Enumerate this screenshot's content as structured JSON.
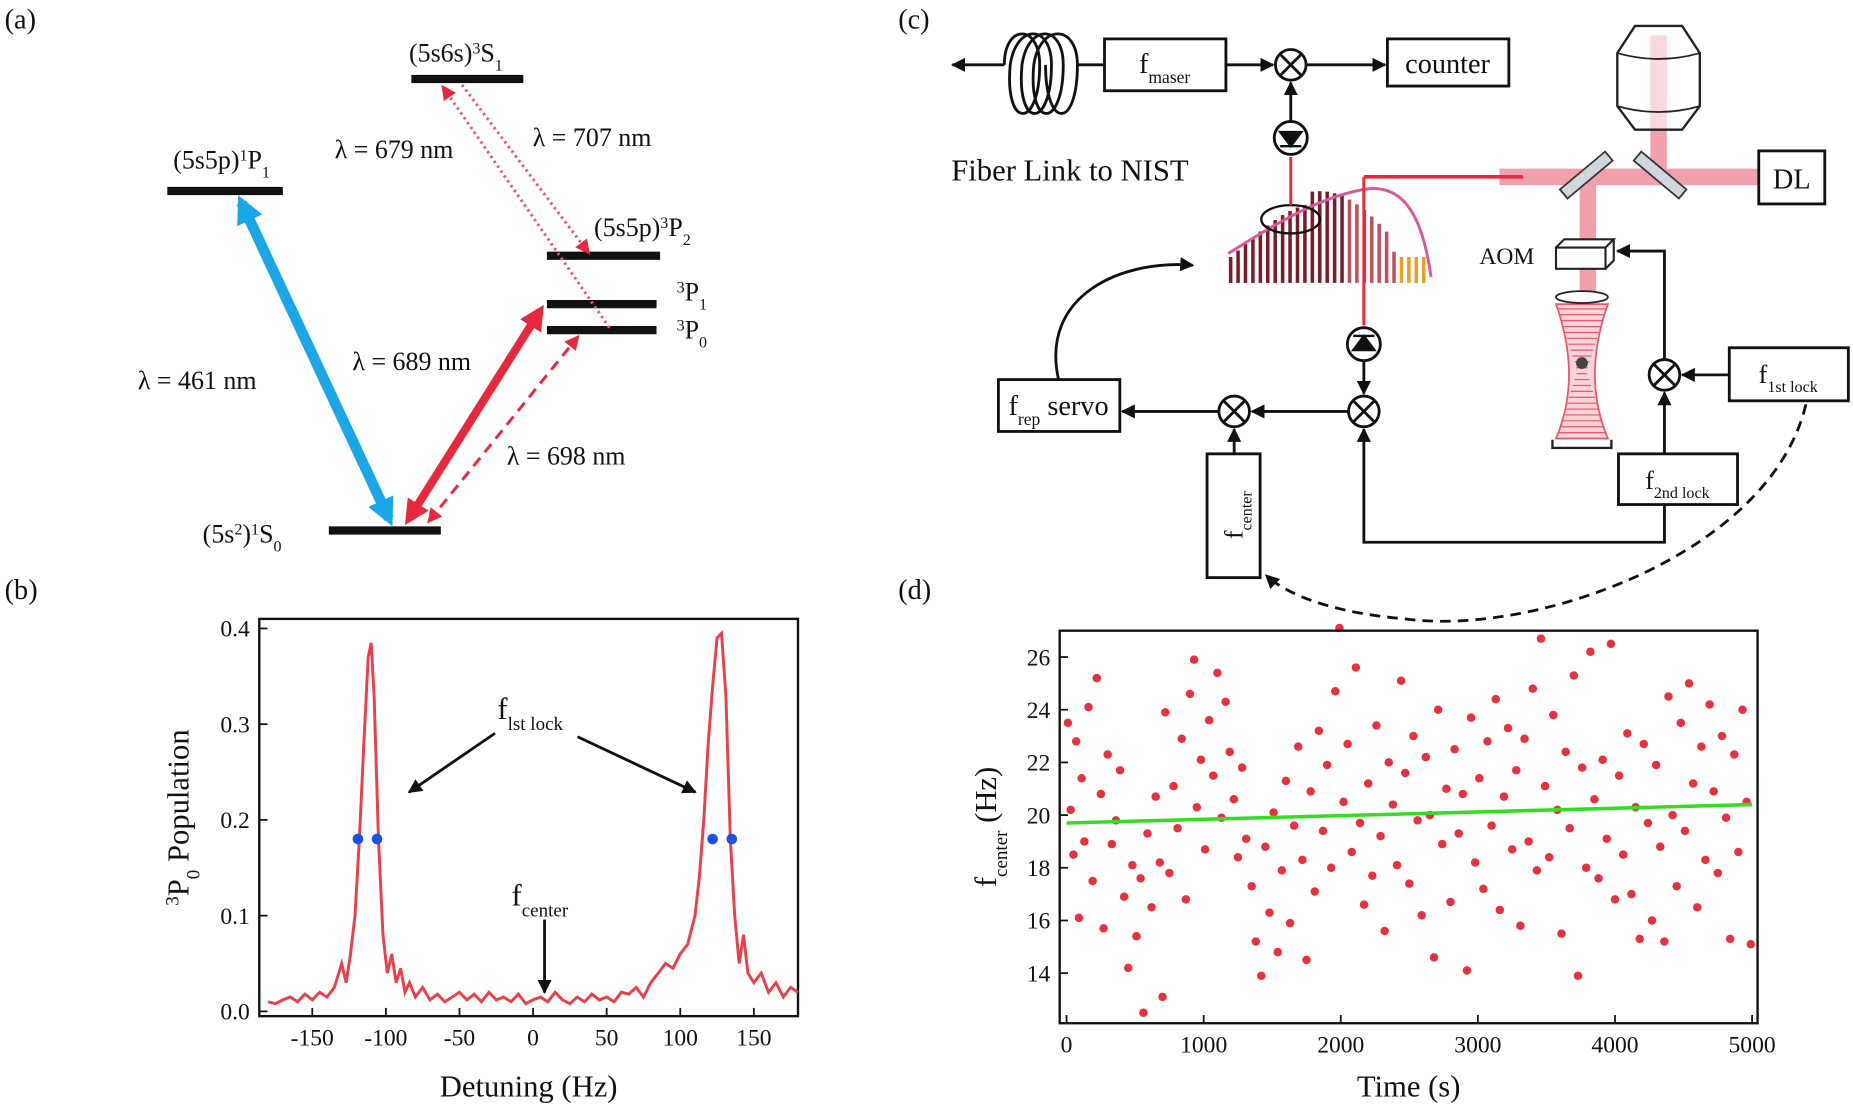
{
  "panel_labels": [
    "(a)",
    "(b)",
    "(c)",
    "(d)"
  ],
  "diagram_a": {
    "levels": [
      {
        "parts": [
          {
            "t": "(5s5p)"
          },
          {
            "sup": "1"
          },
          {
            "t": "P"
          },
          {
            "sub": "1"
          }
        ]
      },
      {
        "parts": [
          {
            "t": "(5s6s)"
          },
          {
            "sup": "3"
          },
          {
            "t": "S"
          },
          {
            "sub": "1"
          }
        ]
      },
      {
        "parts": [
          {
            "t": "(5s5p)"
          },
          {
            "sup": "3"
          },
          {
            "t": "P"
          },
          {
            "sub": "2"
          }
        ]
      },
      {
        "parts": [
          {
            "sup": "3"
          },
          {
            "t": "P"
          },
          {
            "sub": "1"
          }
        ]
      },
      {
        "parts": [
          {
            "sup": "3"
          },
          {
            "t": "P"
          },
          {
            "sub": "0"
          }
        ]
      },
      {
        "parts": [
          {
            "t": "(5s"
          },
          {
            "sup": "2"
          },
          {
            "t": ")"
          },
          {
            "sup": "1"
          },
          {
            "t": "S"
          },
          {
            "sub": "0"
          }
        ]
      }
    ],
    "transitions": [
      "λ = 461 nm",
      "λ = 689 nm",
      "λ = 698 nm",
      "λ = 679 nm",
      "λ = 707 nm"
    ]
  },
  "diagram_c": {
    "fiber": "Fiber Link to NIST",
    "aom": "AOM",
    "boxes": {
      "maser": {
        "parts": [
          {
            "t": "f"
          },
          {
            "sub": "maser"
          }
        ]
      },
      "counter": {
        "parts": [
          {
            "t": "counter"
          }
        ]
      },
      "dl": {
        "parts": [
          {
            "t": "DL"
          }
        ]
      },
      "rep": {
        "parts": [
          {
            "t": "f"
          },
          {
            "sub": "rep"
          },
          {
            "t": " servo"
          }
        ]
      },
      "center": {
        "parts": [
          {
            "t": "f"
          },
          {
            "sub": "center"
          }
        ]
      },
      "lock1": {
        "parts": [
          {
            "t": "f"
          },
          {
            "sub": "1st lock"
          }
        ]
      },
      "lock2": {
        "parts": [
          {
            "t": "f"
          },
          {
            "sub": "2nd lock"
          }
        ]
      }
    }
  },
  "chart_data": [
    {
      "type": "line",
      "x": [
        -180,
        -175,
        -170,
        -165,
        -160,
        -155,
        -150,
        -145,
        -140,
        -135,
        -130,
        -127,
        -124,
        -121,
        -118,
        -115,
        -112,
        -110,
        -108,
        -105,
        -102,
        -99,
        -96,
        -93,
        -90,
        -87,
        -84,
        -80,
        -75,
        -70,
        -65,
        -60,
        -55,
        -50,
        -45,
        -40,
        -35,
        -30,
        -25,
        -20,
        -15,
        -10,
        -5,
        0,
        5,
        10,
        15,
        20,
        25,
        30,
        35,
        40,
        45,
        50,
        55,
        60,
        65,
        70,
        75,
        80,
        85,
        90,
        95,
        100,
        105,
        110,
        113,
        116,
        119,
        122,
        125,
        128,
        131,
        134,
        137,
        140,
        143,
        146,
        150,
        155,
        160,
        165,
        170,
        175,
        180
      ],
      "values": [
        0.01,
        0.008,
        0.012,
        0.015,
        0.01,
        0.018,
        0.012,
        0.02,
        0.015,
        0.025,
        0.05,
        0.03,
        0.06,
        0.1,
        0.18,
        0.28,
        0.37,
        0.385,
        0.33,
        0.18,
        0.08,
        0.04,
        0.06,
        0.03,
        0.045,
        0.02,
        0.03,
        0.015,
        0.025,
        0.012,
        0.018,
        0.01,
        0.015,
        0.02,
        0.012,
        0.018,
        0.01,
        0.02,
        0.012,
        0.015,
        0.01,
        0.018,
        0.008,
        0.012,
        0.015,
        0.01,
        0.02,
        0.012,
        0.008,
        0.015,
        0.01,
        0.018,
        0.012,
        0.015,
        0.01,
        0.02,
        0.018,
        0.025,
        0.015,
        0.03,
        0.04,
        0.05,
        0.045,
        0.06,
        0.07,
        0.1,
        0.14,
        0.2,
        0.28,
        0.34,
        0.39,
        0.395,
        0.33,
        0.18,
        0.1,
        0.05,
        0.08,
        0.04,
        0.03,
        0.04,
        0.02,
        0.03,
        0.015,
        0.025,
        0.02
      ],
      "color": "#e8404c",
      "markers": {
        "x": [
          -119,
          -106,
          122,
          135
        ],
        "values": [
          0.18,
          0.18,
          0.18,
          0.18
        ],
        "color": "#1f4fe0"
      },
      "xlim": [
        -186,
        180
      ],
      "ylim": [
        -0.005,
        0.41
      ],
      "xticks": [
        -150,
        -100,
        -50,
        0,
        50,
        100,
        150
      ],
      "yticks": [
        {
          "value": 0,
          "label": "0.0"
        },
        0.1,
        0.2,
        0.3,
        0.4
      ],
      "xlabel": "Detuning (Hz)",
      "ylabel": [
        {
          "sup": "3"
        },
        {
          "t": "P"
        },
        {
          "sub": "0"
        },
        {
          "t": " Population"
        }
      ],
      "annotations": [
        [
          {
            "t": "f"
          },
          {
            "sub": "lst lock"
          }
        ],
        [
          {
            "t": "f"
          },
          {
            "sub": "center"
          }
        ]
      ]
    },
    {
      "type": "scatter",
      "x": [
        10,
        30,
        50,
        70,
        90,
        110,
        130,
        160,
        190,
        220,
        250,
        270,
        300,
        330,
        360,
        390,
        420,
        450,
        480,
        510,
        540,
        560,
        590,
        620,
        650,
        680,
        700,
        720,
        750,
        780,
        810,
        840,
        870,
        900,
        930,
        950,
        980,
        1010,
        1040,
        1070,
        1100,
        1130,
        1160,
        1190,
        1220,
        1250,
        1280,
        1310,
        1350,
        1380,
        1420,
        1450,
        1480,
        1510,
        1540,
        1570,
        1600,
        1630,
        1660,
        1690,
        1720,
        1750,
        1780,
        1810,
        1840,
        1870,
        1900,
        1930,
        1960,
        1990,
        2020,
        2050,
        2080,
        2110,
        2140,
        2170,
        2200,
        2230,
        2260,
        2290,
        2320,
        2350,
        2380,
        2410,
        2440,
        2470,
        2500,
        2530,
        2560,
        2590,
        2620,
        2650,
        2680,
        2710,
        2740,
        2770,
        2800,
        2830,
        2860,
        2890,
        2920,
        2950,
        2980,
        3010,
        3040,
        3070,
        3100,
        3130,
        3160,
        3190,
        3220,
        3250,
        3280,
        3310,
        3340,
        3370,
        3400,
        3430,
        3460,
        3490,
        3520,
        3550,
        3580,
        3610,
        3640,
        3670,
        3700,
        3730,
        3760,
        3790,
        3820,
        3850,
        3880,
        3910,
        3940,
        3970,
        4000,
        4030,
        4060,
        4090,
        4120,
        4150,
        4180,
        4210,
        4240,
        4270,
        4300,
        4330,
        4360,
        4390,
        4420,
        4450,
        4480,
        4510,
        4540,
        4570,
        4600,
        4630,
        4660,
        4690,
        4720,
        4750,
        4780,
        4810,
        4840,
        4870,
        4900,
        4930,
        4960,
        4990
      ],
      "values": [
        23.5,
        20.2,
        18.5,
        22.8,
        16.1,
        21.4,
        19.0,
        24.1,
        17.5,
        25.2,
        20.8,
        15.7,
        22.3,
        18.9,
        19.8,
        21.7,
        16.9,
        14.2,
        18.1,
        15.4,
        17.6,
        12.5,
        19.3,
        16.5,
        20.7,
        18.2,
        13.1,
        23.9,
        17.8,
        21.1,
        19.5,
        22.9,
        16.8,
        24.6,
        25.9,
        20.3,
        22.1,
        18.7,
        23.6,
        21.5,
        25.4,
        19.9,
        24.3,
        22.4,
        20.6,
        18.4,
        21.8,
        19.1,
        17.3,
        15.2,
        13.9,
        18.8,
        16.3,
        20.1,
        14.8,
        17.9,
        21.3,
        15.9,
        19.6,
        22.6,
        18.3,
        14.5,
        20.9,
        17.1,
        23.2,
        19.4,
        21.9,
        18.0,
        24.7,
        27.1,
        20.5,
        22.7,
        18.6,
        25.6,
        19.7,
        16.6,
        21.2,
        17.7,
        23.4,
        19.2,
        15.6,
        22.0,
        20.4,
        18.1,
        25.1,
        21.6,
        17.4,
        23.0,
        19.8,
        16.2,
        22.2,
        20.0,
        14.6,
        24.0,
        18.9,
        21.0,
        16.7,
        22.5,
        19.3,
        20.8,
        14.1,
        23.7,
        18.2,
        21.4,
        17.2,
        22.8,
        19.6,
        24.4,
        16.4,
        20.7,
        23.3,
        18.7,
        21.7,
        15.8,
        22.9,
        19.0,
        24.8,
        17.9,
        26.7,
        21.1,
        18.4,
        23.8,
        20.2,
        15.5,
        22.4,
        19.5,
        25.3,
        13.9,
        21.8,
        18.0,
        26.2,
        20.6,
        17.6,
        22.1,
        19.1,
        26.5,
        16.8,
        21.5,
        18.5,
        23.1,
        17.0,
        20.3,
        15.3,
        22.7,
        19.7,
        16.0,
        21.9,
        18.8,
        15.2,
        24.5,
        20.0,
        17.3,
        23.5,
        19.4,
        25.0,
        21.2,
        16.5,
        22.6,
        18.3,
        24.2,
        20.9,
        17.8,
        23.0,
        19.9,
        15.3,
        22.3,
        18.6,
        24.0,
        20.5,
        15.1
      ],
      "color": "#e8303f",
      "fit": {
        "x": [
          0,
          5000
        ],
        "values": [
          19.7,
          20.4
        ],
        "color": "#33dd22"
      },
      "xlim": [
        -50,
        5040
      ],
      "ylim": [
        12.1,
        27
      ],
      "xticks": [
        0,
        1000,
        2000,
        3000,
        4000,
        5000
      ],
      "yticks": [
        14,
        16,
        18,
        20,
        22,
        24,
        26
      ],
      "xlabel": "Time (s)",
      "ylabel": [
        {
          "t": "f"
        },
        {
          "sub": "center"
        },
        {
          "t": " (Hz)"
        }
      ]
    }
  ]
}
